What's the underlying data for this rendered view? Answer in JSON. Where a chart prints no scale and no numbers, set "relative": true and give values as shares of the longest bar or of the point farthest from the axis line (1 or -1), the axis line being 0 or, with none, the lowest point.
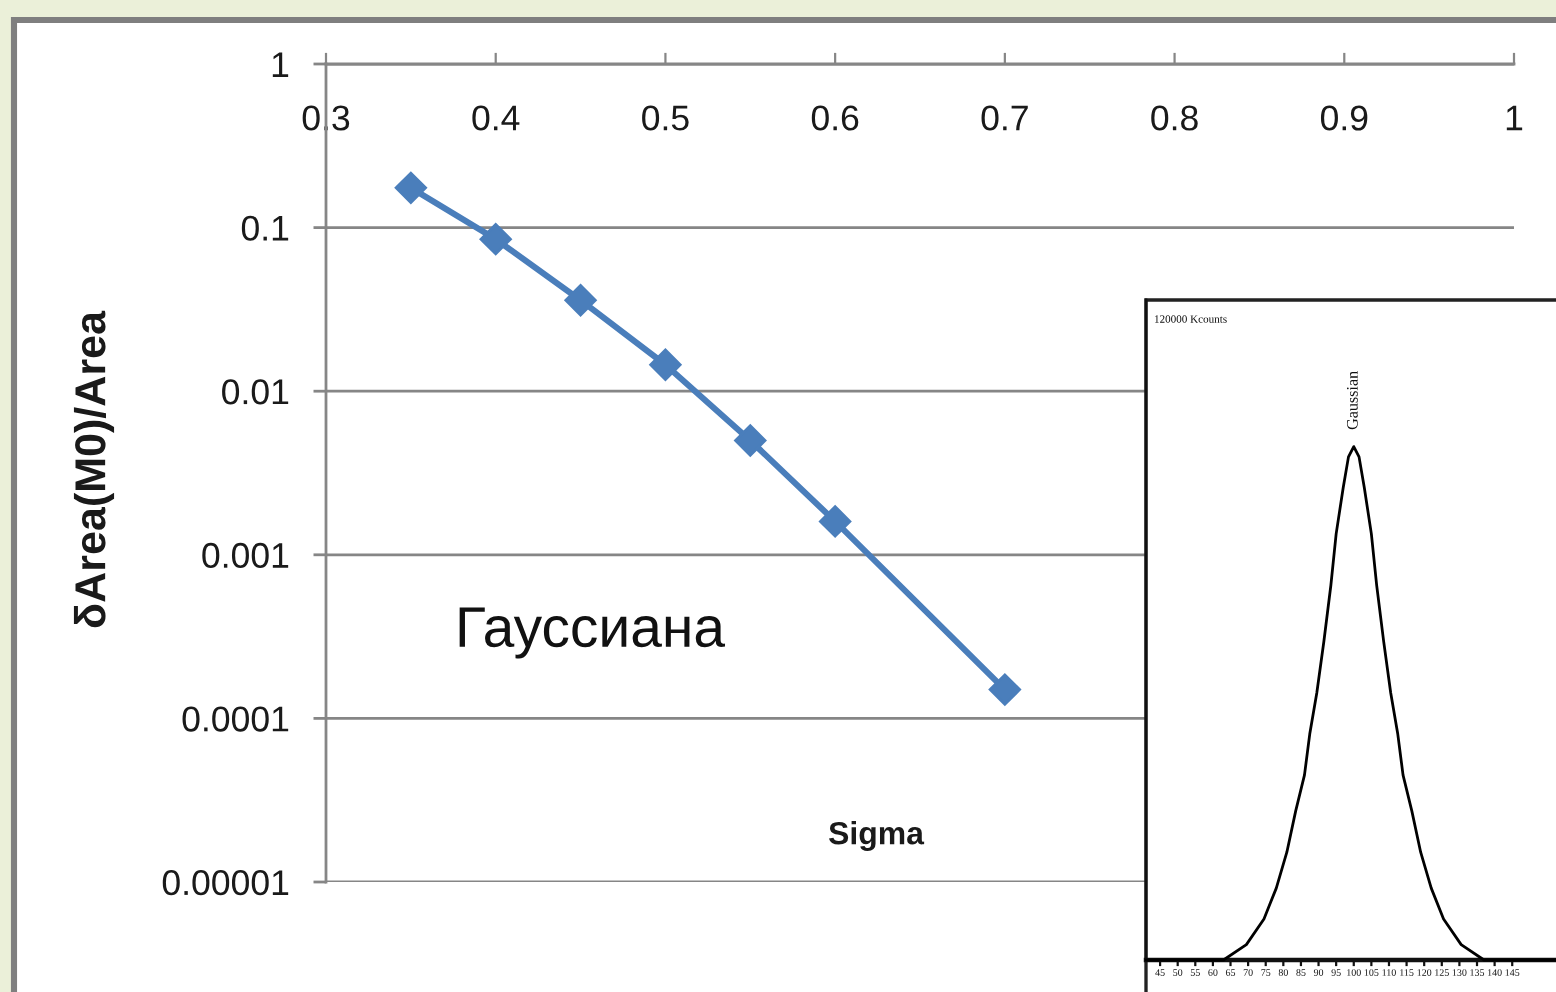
{
  "chart_data": [
    {
      "type": "line",
      "xlabel": "Sigma",
      "ylabel": "δArea(M0)/Area",
      "annotations": [
        "Гауссиана"
      ],
      "x": [
        0.35,
        0.4,
        0.45,
        0.5,
        0.55,
        0.6,
        0.7
      ],
      "series": [
        {
          "color": "#4a7ebb",
          "values": [
            0.175,
            0.085,
            0.036,
            0.0145,
            0.005,
            0.0016,
            0.00015
          ]
        }
      ],
      "xlim": [
        0.3,
        1
      ],
      "xticks": [
        0.3,
        0.4,
        0.5,
        0.6,
        0.7,
        0.8,
        0.9,
        1
      ],
      "ylim": [
        1e-05,
        1
      ],
      "yticks": [
        {
          "value": 1e-05,
          "label": "0.00001"
        },
        0.0001,
        0.001,
        0.01,
        0.1,
        1
      ],
      "log": "y",
      "grid": "y",
      "marker": "diamond",
      "line_style": "solid"
    },
    {
      "type": "line",
      "relative": true,
      "annotations": [
        "120000 Kcounts",
        {
          "text": "Gaussian",
          "x": 100,
          "y": 1
        }
      ],
      "x": [
        41,
        55,
        63,
        69.5,
        74.5,
        78,
        81,
        83.5,
        86,
        87.5,
        89.5,
        91.5,
        93.5,
        95,
        97,
        98.5,
        100,
        101.5,
        103,
        105,
        106.5,
        108.5,
        110.5,
        112.5,
        114,
        116.5,
        119,
        122,
        125.5,
        130.5,
        137,
        145,
        158
      ],
      "series": [
        {
          "color": "#000000",
          "values": [
            0,
            0,
            0,
            0.03,
            0.08,
            0.14,
            0.21,
            0.29,
            0.36,
            0.44,
            0.52,
            0.62,
            0.73,
            0.83,
            0.92,
            0.98,
            1,
            0.98,
            0.92,
            0.83,
            0.73,
            0.62,
            0.52,
            0.44,
            0.36,
            0.29,
            0.21,
            0.14,
            0.08,
            0.03,
            0,
            0,
            0
          ]
        }
      ],
      "xlim": [
        41,
        158
      ],
      "xticks": [
        45,
        50,
        55,
        60,
        65,
        70,
        75,
        80,
        85,
        90,
        95,
        100,
        105,
        110,
        115,
        120,
        125,
        130,
        135,
        140,
        145
      ],
      "line_style": "solid"
    }
  ]
}
